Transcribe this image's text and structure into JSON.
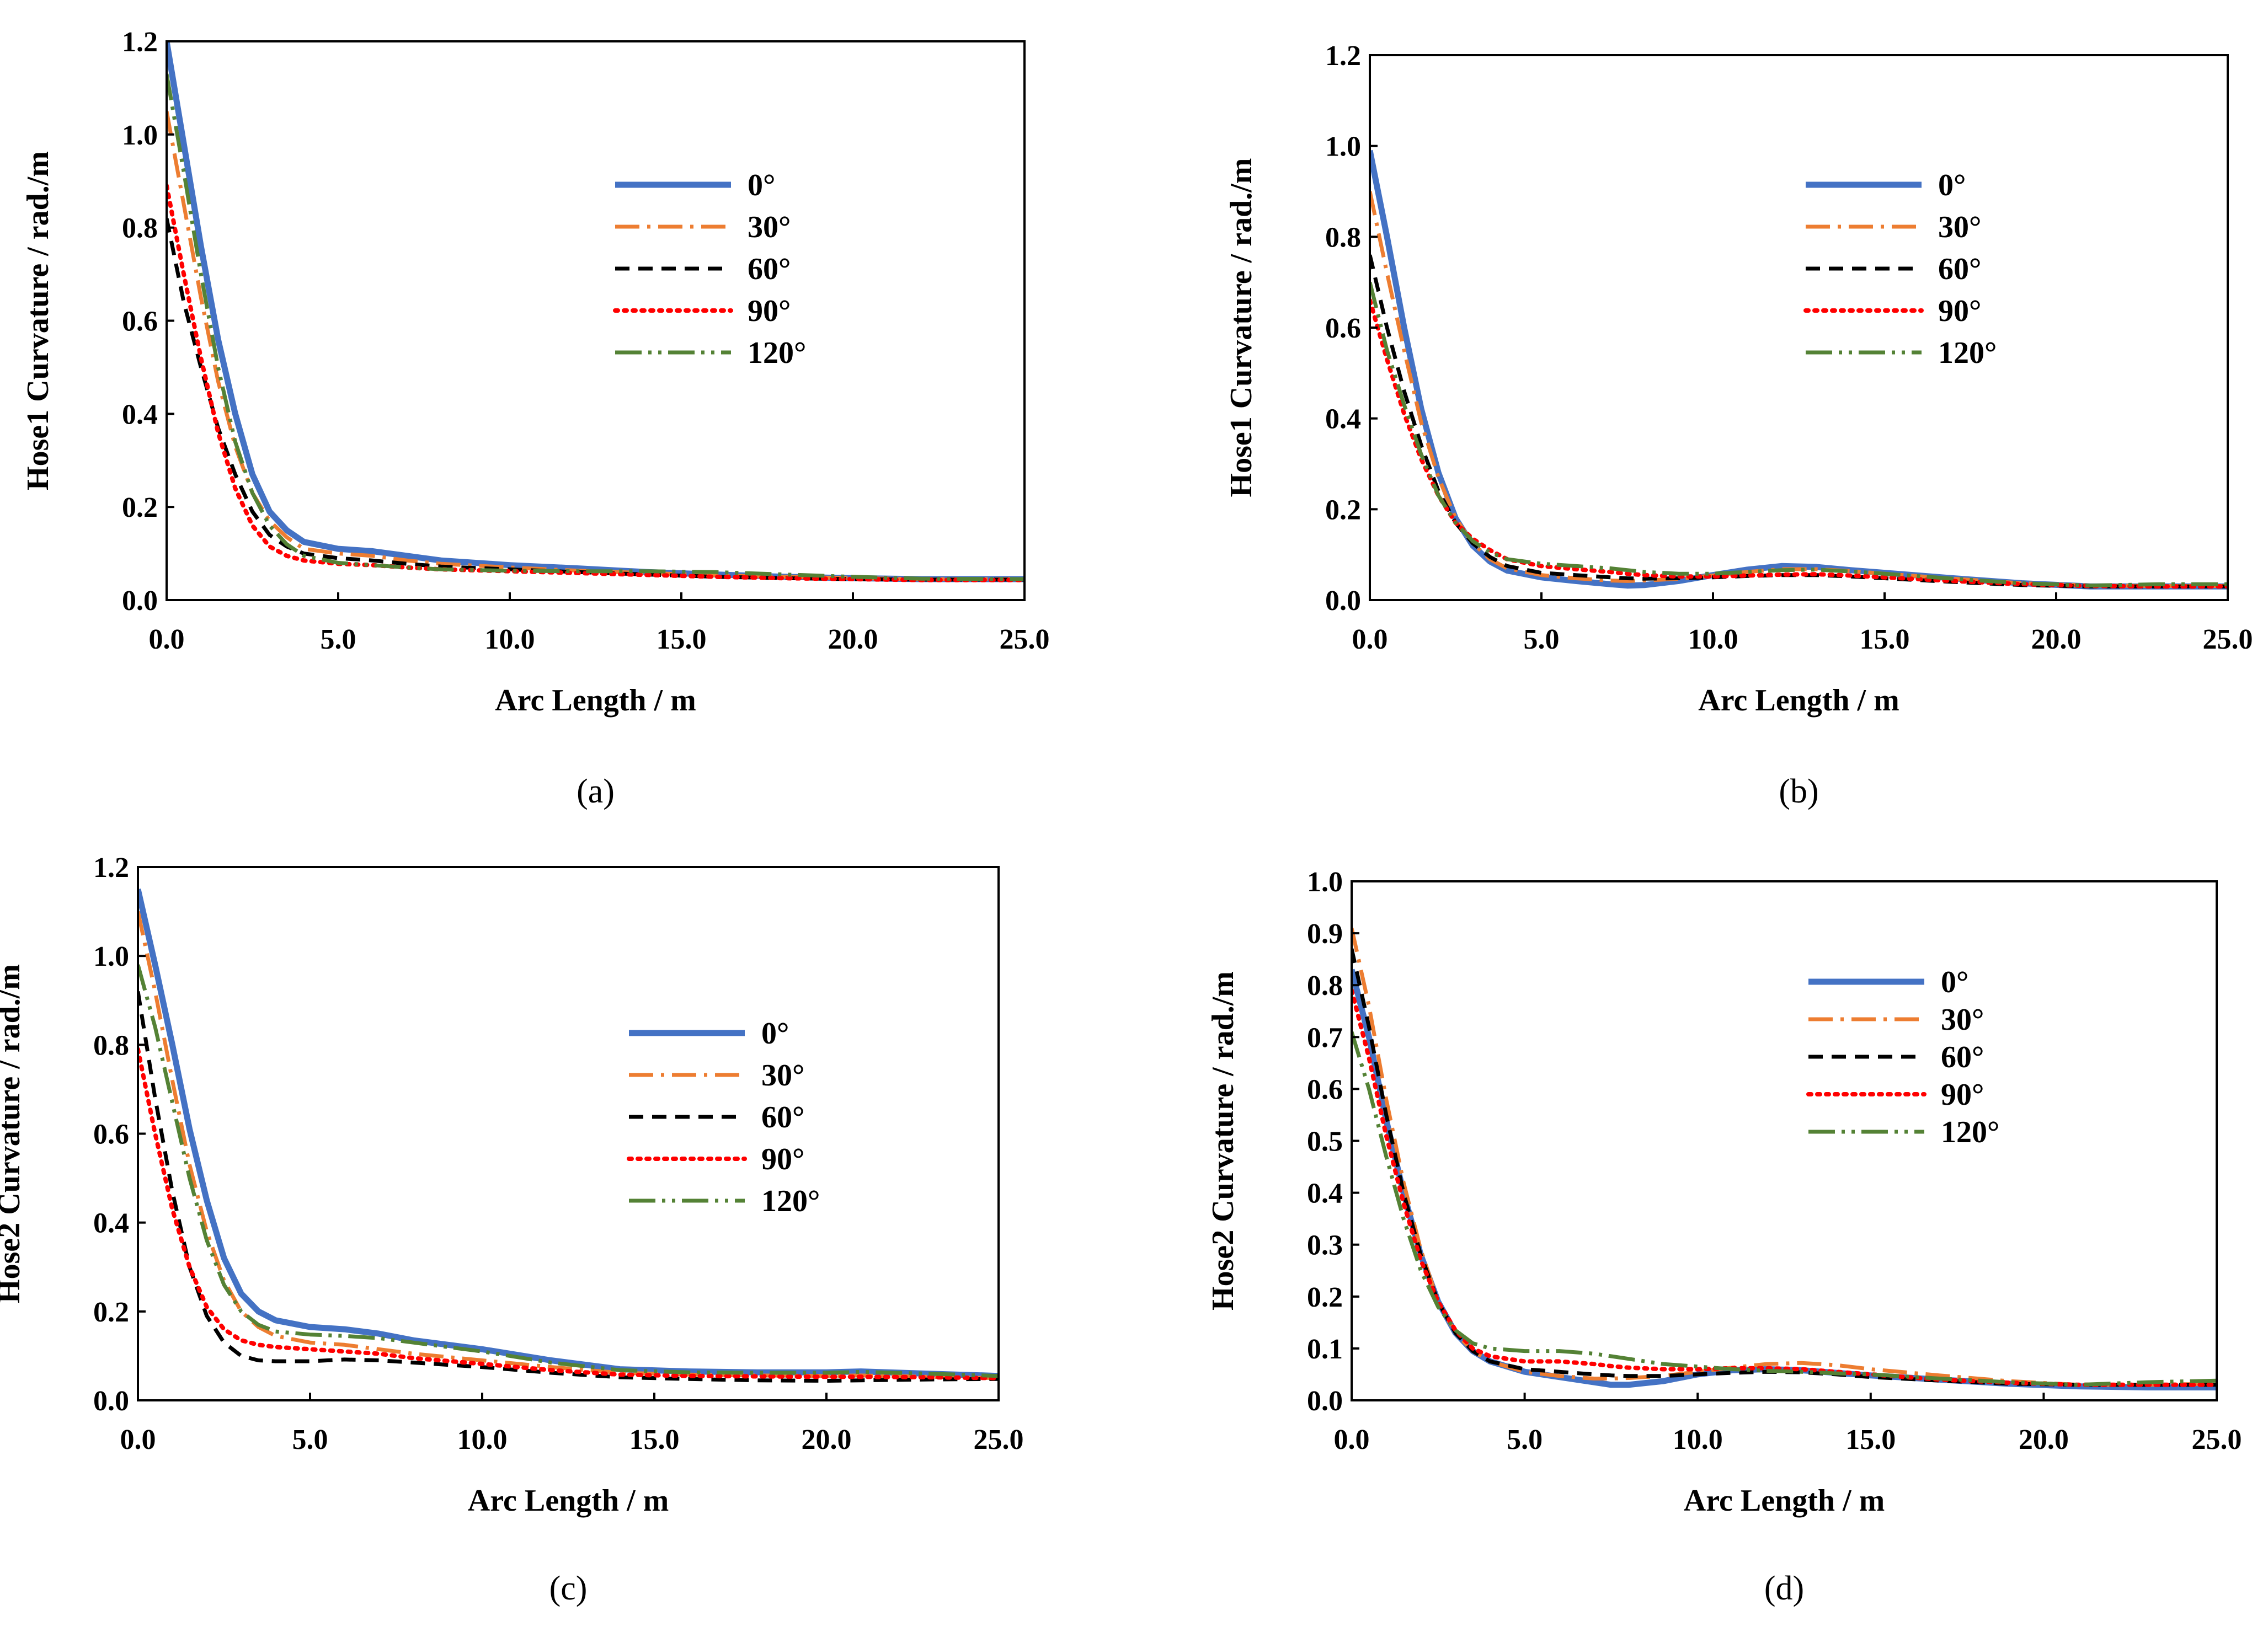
{
  "series_styles": [
    {
      "name": "0°",
      "color": "#4472C4",
      "dash": "none"
    },
    {
      "name": "30°",
      "color": "#ED7D31",
      "dash": "dashdot"
    },
    {
      "name": "60°",
      "color": "#000000",
      "dash": "dash"
    },
    {
      "name": "90°",
      "color": "#FF0000",
      "dash": "dot"
    },
    {
      "name": "120°",
      "color": "#548235",
      "dash": "dashdotdot"
    }
  ],
  "chart_data": [
    {
      "type": "line",
      "caption": "(a)",
      "xlabel": "Arc Length / m",
      "ylabel": "Hose1 Curvature / rad./m",
      "xlim": [
        0,
        25
      ],
      "ylim": [
        0,
        1.2
      ],
      "xticks": [
        "0.0",
        "5.0",
        "10.0",
        "15.0",
        "20.0",
        "25.0"
      ],
      "yticks": [
        "0.0",
        "0.2",
        "0.4",
        "0.6",
        "0.8",
        "1.0",
        "1.2"
      ],
      "legend_position": "top-right",
      "x": [
        0,
        0.5,
        1,
        1.5,
        2,
        2.5,
        3,
        3.5,
        4,
        5,
        6,
        7,
        8,
        10,
        12,
        14,
        16,
        18,
        20,
        22,
        25
      ],
      "series": [
        {
          "name": "0°",
          "values": [
            1.2,
            0.98,
            0.76,
            0.56,
            0.4,
            0.27,
            0.19,
            0.15,
            0.125,
            0.11,
            0.105,
            0.095,
            0.085,
            0.075,
            0.068,
            0.06,
            0.055,
            0.05,
            0.047,
            0.045,
            0.045
          ]
        },
        {
          "name": "30°",
          "values": [
            1.05,
            0.85,
            0.65,
            0.47,
            0.33,
            0.23,
            0.17,
            0.135,
            0.11,
            0.1,
            0.095,
            0.085,
            0.078,
            0.07,
            0.063,
            0.058,
            0.053,
            0.05,
            0.047,
            0.045,
            0.045
          ]
        },
        {
          "name": "60°",
          "values": [
            0.82,
            0.64,
            0.5,
            0.37,
            0.27,
            0.19,
            0.14,
            0.115,
            0.1,
            0.09,
            0.085,
            0.078,
            0.072,
            0.066,
            0.06,
            0.055,
            0.05,
            0.047,
            0.045,
            0.044,
            0.044
          ]
        },
        {
          "name": "90°",
          "values": [
            0.89,
            0.7,
            0.52,
            0.36,
            0.24,
            0.16,
            0.115,
            0.095,
            0.085,
            0.078,
            0.075,
            0.07,
            0.066,
            0.062,
            0.058,
            0.054,
            0.05,
            0.047,
            0.045,
            0.043,
            0.043
          ]
        },
        {
          "name": "120°",
          "values": [
            1.13,
            0.92,
            0.7,
            0.5,
            0.34,
            0.23,
            0.16,
            0.12,
            0.095,
            0.08,
            0.075,
            0.07,
            0.066,
            0.063,
            0.062,
            0.062,
            0.06,
            0.055,
            0.05,
            0.046,
            0.045
          ]
        }
      ]
    },
    {
      "type": "line",
      "caption": "(b)",
      "xlabel": "Arc Length / m",
      "ylabel": "Hose1 Curvature / rad./m",
      "xlim": [
        0,
        25
      ],
      "ylim": [
        0,
        1.2
      ],
      "xticks": [
        "0.0",
        "5.0",
        "10.0",
        "15.0",
        "20.0",
        "25.0"
      ],
      "yticks": [
        "0.0",
        "0.2",
        "0.4",
        "0.6",
        "0.8",
        "1.0",
        "1.2"
      ],
      "legend_position": "top-right",
      "x": [
        0,
        0.5,
        1,
        1.5,
        2,
        2.5,
        3,
        3.5,
        4,
        5,
        6,
        7,
        7.5,
        8,
        9,
        10,
        11,
        12,
        13,
        14,
        15,
        17,
        19,
        21,
        23,
        25
      ],
      "series": [
        {
          "name": "0°",
          "values": [
            0.99,
            0.8,
            0.6,
            0.42,
            0.28,
            0.18,
            0.12,
            0.085,
            0.065,
            0.05,
            0.042,
            0.035,
            0.032,
            0.033,
            0.042,
            0.055,
            0.067,
            0.075,
            0.073,
            0.066,
            0.06,
            0.048,
            0.037,
            0.03,
            0.03,
            0.03
          ]
        },
        {
          "name": "30°",
          "values": [
            0.9,
            0.72,
            0.55,
            0.39,
            0.27,
            0.18,
            0.125,
            0.09,
            0.07,
            0.055,
            0.048,
            0.043,
            0.042,
            0.043,
            0.047,
            0.054,
            0.062,
            0.068,
            0.068,
            0.064,
            0.058,
            0.047,
            0.037,
            0.032,
            0.031,
            0.031
          ]
        },
        {
          "name": "60°",
          "values": [
            0.76,
            0.6,
            0.46,
            0.34,
            0.24,
            0.17,
            0.125,
            0.095,
            0.075,
            0.06,
            0.055,
            0.05,
            0.048,
            0.047,
            0.048,
            0.05,
            0.053,
            0.055,
            0.055,
            0.052,
            0.048,
            0.04,
            0.033,
            0.03,
            0.03,
            0.03
          ]
        },
        {
          "name": "90°",
          "values": [
            0.66,
            0.53,
            0.41,
            0.31,
            0.23,
            0.17,
            0.135,
            0.11,
            0.09,
            0.075,
            0.068,
            0.062,
            0.058,
            0.055,
            0.052,
            0.052,
            0.054,
            0.056,
            0.057,
            0.054,
            0.05,
            0.042,
            0.035,
            0.031,
            0.03,
            0.03
          ]
        },
        {
          "name": "120°",
          "values": [
            0.7,
            0.55,
            0.43,
            0.32,
            0.23,
            0.17,
            0.13,
            0.105,
            0.09,
            0.08,
            0.075,
            0.07,
            0.066,
            0.062,
            0.058,
            0.058,
            0.062,
            0.066,
            0.067,
            0.063,
            0.058,
            0.047,
            0.037,
            0.032,
            0.035,
            0.035
          ]
        }
      ]
    },
    {
      "type": "line",
      "caption": "(c)",
      "xlabel": "Arc Length / m",
      "ylabel": "Hose2 Curvature / rad./m",
      "xlim": [
        0,
        25
      ],
      "ylim": [
        0,
        1.2
      ],
      "xticks": [
        "0.0",
        "5.0",
        "10.0",
        "15.0",
        "20.0",
        "25.0"
      ],
      "yticks": [
        "0.0",
        "0.2",
        "0.4",
        "0.6",
        "0.8",
        "1.0",
        "1.2"
      ],
      "legend_position": "top-right",
      "x": [
        0,
        0.5,
        1,
        1.5,
        2,
        2.5,
        3,
        3.5,
        4,
        5,
        6,
        7,
        8,
        10,
        12,
        14,
        16,
        18,
        20,
        21,
        23,
        25
      ],
      "series": [
        {
          "name": "0°",
          "values": [
            1.15,
            0.98,
            0.8,
            0.61,
            0.45,
            0.32,
            0.24,
            0.2,
            0.18,
            0.165,
            0.16,
            0.15,
            0.135,
            0.115,
            0.09,
            0.07,
            0.065,
            0.063,
            0.063,
            0.065,
            0.06,
            0.055
          ]
        },
        {
          "name": "30°",
          "values": [
            1.1,
            0.92,
            0.72,
            0.53,
            0.38,
            0.27,
            0.2,
            0.165,
            0.145,
            0.13,
            0.125,
            0.115,
            0.105,
            0.09,
            0.075,
            0.062,
            0.058,
            0.056,
            0.055,
            0.056,
            0.053,
            0.05
          ]
        },
        {
          "name": "60°",
          "values": [
            0.92,
            0.68,
            0.47,
            0.3,
            0.19,
            0.13,
            0.1,
            0.09,
            0.088,
            0.088,
            0.092,
            0.09,
            0.085,
            0.075,
            0.062,
            0.052,
            0.048,
            0.045,
            0.044,
            0.045,
            0.047,
            0.048
          ]
        },
        {
          "name": "90°",
          "values": [
            0.79,
            0.6,
            0.43,
            0.3,
            0.21,
            0.16,
            0.135,
            0.125,
            0.12,
            0.115,
            0.11,
            0.105,
            0.095,
            0.082,
            0.068,
            0.058,
            0.055,
            0.054,
            0.053,
            0.053,
            0.052,
            0.05
          ]
        },
        {
          "name": "120°",
          "values": [
            0.98,
            0.84,
            0.67,
            0.5,
            0.36,
            0.26,
            0.2,
            0.17,
            0.155,
            0.148,
            0.145,
            0.14,
            0.13,
            0.11,
            0.085,
            0.068,
            0.063,
            0.062,
            0.062,
            0.064,
            0.06,
            0.055
          ]
        }
      ]
    },
    {
      "type": "line",
      "caption": "(d)",
      "xlabel": "Arc Length / m",
      "ylabel": "Hose2 Curvature / rad./m",
      "xlim": [
        0,
        25
      ],
      "ylim": [
        0,
        1.0
      ],
      "xticks": [
        "0.0",
        "5.0",
        "10.0",
        "15.0",
        "20.0",
        "25.0"
      ],
      "yticks": [
        "0.0",
        "0.1",
        "0.2",
        "0.3",
        "0.4",
        "0.5",
        "0.6",
        "0.7",
        "0.8",
        "0.9",
        "1.0"
      ],
      "legend_position": "top-right",
      "x": [
        0,
        0.5,
        1,
        1.5,
        2,
        2.5,
        3,
        3.5,
        4,
        5,
        6,
        7,
        7.5,
        8,
        9,
        10,
        11,
        12,
        13,
        14,
        15,
        17,
        19,
        21,
        23,
        25
      ],
      "series": [
        {
          "name": "0°",
          "values": [
            0.83,
            0.7,
            0.54,
            0.4,
            0.28,
            0.19,
            0.13,
            0.095,
            0.075,
            0.055,
            0.045,
            0.035,
            0.03,
            0.03,
            0.037,
            0.05,
            0.058,
            0.06,
            0.058,
            0.053,
            0.048,
            0.04,
            0.032,
            0.027,
            0.025,
            0.025
          ]
        },
        {
          "name": "30°",
          "values": [
            0.91,
            0.76,
            0.58,
            0.42,
            0.29,
            0.19,
            0.13,
            0.095,
            0.075,
            0.055,
            0.047,
            0.042,
            0.042,
            0.043,
            0.047,
            0.055,
            0.063,
            0.07,
            0.072,
            0.068,
            0.06,
            0.048,
            0.037,
            0.03,
            0.03,
            0.032
          ]
        },
        {
          "name": "60°",
          "values": [
            0.87,
            0.72,
            0.55,
            0.4,
            0.28,
            0.19,
            0.13,
            0.095,
            0.075,
            0.06,
            0.055,
            0.05,
            0.048,
            0.047,
            0.047,
            0.05,
            0.053,
            0.055,
            0.054,
            0.05,
            0.045,
            0.038,
            0.032,
            0.03,
            0.03,
            0.03
          ]
        },
        {
          "name": "90°",
          "values": [
            0.79,
            0.66,
            0.51,
            0.38,
            0.27,
            0.19,
            0.135,
            0.1,
            0.085,
            0.075,
            0.075,
            0.07,
            0.066,
            0.063,
            0.06,
            0.06,
            0.062,
            0.062,
            0.06,
            0.055,
            0.05,
            0.04,
            0.034,
            0.03,
            0.03,
            0.03
          ]
        },
        {
          "name": "120°",
          "values": [
            0.71,
            0.6,
            0.47,
            0.35,
            0.25,
            0.18,
            0.135,
            0.11,
            0.1,
            0.095,
            0.095,
            0.09,
            0.085,
            0.08,
            0.07,
            0.065,
            0.06,
            0.057,
            0.055,
            0.052,
            0.05,
            0.042,
            0.035,
            0.03,
            0.035,
            0.038
          ]
        }
      ]
    }
  ]
}
